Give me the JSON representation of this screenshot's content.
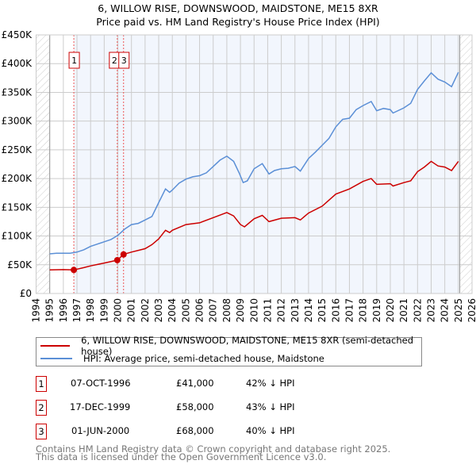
{
  "chart_data": {
    "type": "line",
    "title": "6, WILLOW RISE, DOWNSWOOD, MAIDSTONE, ME15 8XR",
    "subtitle": "Price paid vs. HM Land Registry's House Price Index (HPI)",
    "xlim": [
      1994,
      2026
    ],
    "ylim": [
      0,
      450000
    ],
    "x_ticks": [
      "1994",
      "1995",
      "1996",
      "1997",
      "1998",
      "1999",
      "2000",
      "2001",
      "2002",
      "2003",
      "2004",
      "2005",
      "2006",
      "2007",
      "2008",
      "2009",
      "2010",
      "2011",
      "2012",
      "2013",
      "2014",
      "2015",
      "2016",
      "2017",
      "2018",
      "2019",
      "2020",
      "2021",
      "2022",
      "2023",
      "2024",
      "2025",
      "2026"
    ],
    "y_ticks": [
      {
        "v": 0,
        "l": "£0"
      },
      {
        "v": 50000,
        "l": "£50K"
      },
      {
        "v": 100000,
        "l": "£100K"
      },
      {
        "v": 150000,
        "l": "£150K"
      },
      {
        "v": 200000,
        "l": "£200K"
      },
      {
        "v": 250000,
        "l": "£250K"
      },
      {
        "v": 300000,
        "l": "£300K"
      },
      {
        "v": 350000,
        "l": "£350K"
      },
      {
        "v": 400000,
        "l": "£400K"
      },
      {
        "v": 450000,
        "l": "£450K"
      }
    ],
    "grid": true,
    "data_range": [
      1995,
      2025.1
    ],
    "series": [
      {
        "name": "6, WILLOW RISE, DOWNSWOOD, MAIDSTONE, ME15 8XR (semi-detached house)",
        "color": "#cc0000",
        "points": [
          [
            1995,
            41
          ],
          [
            1996,
            41.5
          ],
          [
            1996.77,
            41
          ],
          [
            1997.5,
            45
          ],
          [
            1998,
            48
          ],
          [
            1999,
            53
          ],
          [
            1999.96,
            58
          ],
          [
            2000.42,
            68
          ],
          [
            2001,
            72
          ],
          [
            2002,
            78
          ],
          [
            2002.5,
            85
          ],
          [
            2003,
            95
          ],
          [
            2003.5,
            110
          ],
          [
            2003.8,
            106
          ],
          [
            2004,
            110
          ],
          [
            2005,
            120
          ],
          [
            2006,
            123
          ],
          [
            2007,
            132
          ],
          [
            2008,
            141
          ],
          [
            2008.5,
            135
          ],
          [
            2009,
            120
          ],
          [
            2009.3,
            116
          ],
          [
            2010,
            130
          ],
          [
            2010.6,
            136
          ],
          [
            2011.1,
            125
          ],
          [
            2012,
            131
          ],
          [
            2013,
            132
          ],
          [
            2013.4,
            128
          ],
          [
            2014,
            140
          ],
          [
            2015,
            152
          ],
          [
            2016,
            173
          ],
          [
            2017,
            182
          ],
          [
            2018,
            195
          ],
          [
            2018.6,
            200
          ],
          [
            2019,
            190
          ],
          [
            2020,
            191
          ],
          [
            2020.2,
            187
          ],
          [
            2021,
            193
          ],
          [
            2021.5,
            196
          ],
          [
            2022,
            212
          ],
          [
            2022.5,
            220
          ],
          [
            2023,
            230
          ],
          [
            2023.5,
            222
          ],
          [
            2024,
            220
          ],
          [
            2024.5,
            214
          ],
          [
            2025,
            230
          ]
        ]
      },
      {
        "name": "HPI: Average price, semi-detached house, Maidstone",
        "color": "#5b8fd6",
        "points": [
          [
            1995,
            69
          ],
          [
            1995.5,
            70
          ],
          [
            1996,
            70
          ],
          [
            1996.5,
            70
          ],
          [
            1997,
            72
          ],
          [
            1997.5,
            76
          ],
          [
            1998,
            82
          ],
          [
            1998.5,
            86
          ],
          [
            1999,
            90
          ],
          [
            1999.5,
            94
          ],
          [
            2000,
            101
          ],
          [
            2000.5,
            112
          ],
          [
            2001,
            120
          ],
          [
            2001.5,
            122
          ],
          [
            2002,
            128
          ],
          [
            2002.5,
            134
          ],
          [
            2003,
            158
          ],
          [
            2003.5,
            182
          ],
          [
            2003.8,
            176
          ],
          [
            2004,
            180
          ],
          [
            2004.5,
            192
          ],
          [
            2005,
            199
          ],
          [
            2005.5,
            203
          ],
          [
            2006,
            205
          ],
          [
            2006.5,
            210
          ],
          [
            2007,
            221
          ],
          [
            2007.5,
            232
          ],
          [
            2008,
            239
          ],
          [
            2008.5,
            230
          ],
          [
            2008.9,
            210
          ],
          [
            2009.2,
            193
          ],
          [
            2009.5,
            196
          ],
          [
            2010,
            217
          ],
          [
            2010.6,
            226
          ],
          [
            2011.1,
            208
          ],
          [
            2011.5,
            214
          ],
          [
            2012,
            217
          ],
          [
            2012.5,
            218
          ],
          [
            2013,
            221
          ],
          [
            2013.4,
            213
          ],
          [
            2014,
            235
          ],
          [
            2014.5,
            246
          ],
          [
            2015,
            258
          ],
          [
            2015.5,
            270
          ],
          [
            2016,
            290
          ],
          [
            2016.5,
            303
          ],
          [
            2017,
            305
          ],
          [
            2017.5,
            320
          ],
          [
            2018,
            327
          ],
          [
            2018.6,
            334
          ],
          [
            2019,
            318
          ],
          [
            2019.5,
            322
          ],
          [
            2020,
            320
          ],
          [
            2020.2,
            314
          ],
          [
            2021,
            323
          ],
          [
            2021.5,
            331
          ],
          [
            2022,
            355
          ],
          [
            2022.5,
            370
          ],
          [
            2023,
            384
          ],
          [
            2023.5,
            373
          ],
          [
            2024,
            368
          ],
          [
            2024.5,
            360
          ],
          [
            2025,
            385
          ]
        ]
      }
    ],
    "y_unit": "thousands GBP",
    "sales": [
      {
        "label": "1",
        "x": 1996.77,
        "y": 41
      },
      {
        "label": "2",
        "x": 1999.96,
        "y": 58
      },
      {
        "label": "3",
        "x": 2000.42,
        "y": 68
      }
    ],
    "legend": "below"
  },
  "legend": {
    "property": "6, WILLOW RISE, DOWNSWOOD, MAIDSTONE, ME15 8XR (semi-detached house)",
    "hpi": "HPI: Average price, semi-detached house, Maidstone"
  },
  "transactions": [
    {
      "num": "1",
      "date": "07-OCT-1996",
      "price": "£41,000",
      "diff": "42% ↓ HPI"
    },
    {
      "num": "2",
      "date": "17-DEC-1999",
      "price": "£58,000",
      "diff": "43% ↓ HPI"
    },
    {
      "num": "3",
      "date": "01-JUN-2000",
      "price": "£68,000",
      "diff": "40% ↓ HPI"
    }
  ],
  "footer": {
    "line1": "Contains HM Land Registry data © Crown copyright and database right 2025.",
    "line2": "This data is licensed under the Open Government Licence v3.0."
  }
}
